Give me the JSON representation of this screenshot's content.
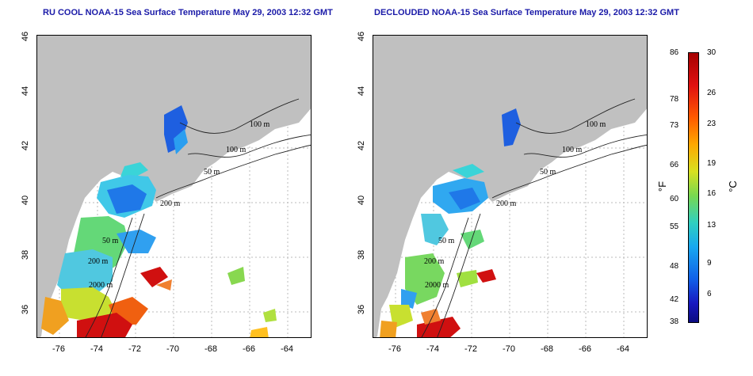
{
  "left_panel": {
    "title": "RU COOL NOAA-15 Sea Surface Temperature May 29, 2003 12:32 GMT",
    "contour_labels": [
      "100 m",
      "100 m",
      "50 m",
      "200 m",
      "50 m",
      "200 m",
      "2000 m"
    ]
  },
  "right_panel": {
    "title": "DECLOUDED NOAA-15 Sea Surface Temperature May 29, 2003 12:32 GMT",
    "contour_labels": [
      "100 m",
      "100 m",
      "50 m",
      "200 m",
      "50 m",
      "200 m",
      "2000 m"
    ]
  },
  "axes": {
    "x_ticks": [
      "-76",
      "-74",
      "-72",
      "-70",
      "-68",
      "-66",
      "-64"
    ],
    "y_ticks": [
      "46",
      "44",
      "42",
      "40",
      "38",
      "36"
    ]
  },
  "colorbar": {
    "fahrenheit_ticks": [
      "86",
      "78",
      "73",
      "66",
      "60",
      "55",
      "48",
      "42",
      "38"
    ],
    "celsius_ticks": [
      "30",
      "26",
      "23",
      "19",
      "16",
      "13",
      "9",
      "6"
    ],
    "unit_f": "°F",
    "unit_c": "°C"
  },
  "colors": {
    "land": "#c0c0c0",
    "title": "#1a1aa8",
    "grid": "#bbbbbb"
  }
}
